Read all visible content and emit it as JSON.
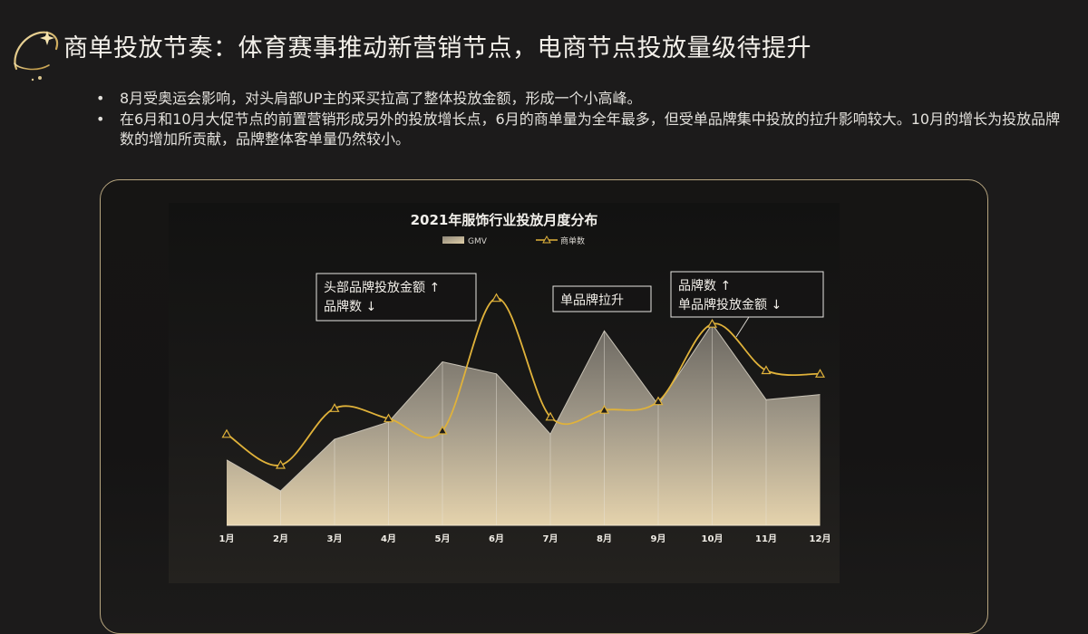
{
  "slide": {
    "title": "商单投放节奏：体育赛事推动新营销节点，电商节点投放量级待提升",
    "bullets": [
      "8月受奥运会影响，对头肩部UP主的采买拉高了整体投放金额，形成一个小高峰。",
      "在6月和10月大促节点的前置营销形成另外的投放增长点，6月的商单量为全年最多，但受单品牌集中投放的拉升影响较大。10月的增长为投放品牌数的增加所贡献，品牌整体客单量仍然较小。"
    ]
  },
  "colors": {
    "background": "#1c1b1b",
    "accent_gold": "#e0b23a",
    "area_fill_top": "#7d7870",
    "area_fill_bottom": "#efdcb4",
    "panel_border": "#b7a57f"
  },
  "chart_data": {
    "type": "area",
    "title": "2021年服饰行业投放月度分布",
    "categories": [
      "1月",
      "2月",
      "3月",
      "4月",
      "5月",
      "6月",
      "7月",
      "8月",
      "9月",
      "10月",
      "11月",
      "12月"
    ],
    "series": [
      {
        "name": "GMV",
        "type": "area",
        "values": [
          38,
          20,
          50,
          60,
          95,
          88,
          53,
          113,
          70,
          117,
          73,
          76
        ]
      },
      {
        "name": "商单数",
        "type": "line",
        "values": [
          53,
          35,
          68,
          62,
          55,
          132,
          63,
          67,
          72,
          117,
          90,
          88
        ]
      }
    ],
    "ylim": [
      0,
      140
    ],
    "grid": false,
    "legend": "top-center",
    "annotations": [
      {
        "month": "6月",
        "lines": [
          "头部品牌投放金额 ↑",
          "品牌数 ↓"
        ]
      },
      {
        "month": "8月",
        "lines": [
          "单品牌拉升"
        ]
      },
      {
        "month": "10月",
        "lines": [
          "品牌数 ↑",
          "单品牌投放金额 ↓"
        ]
      }
    ]
  }
}
